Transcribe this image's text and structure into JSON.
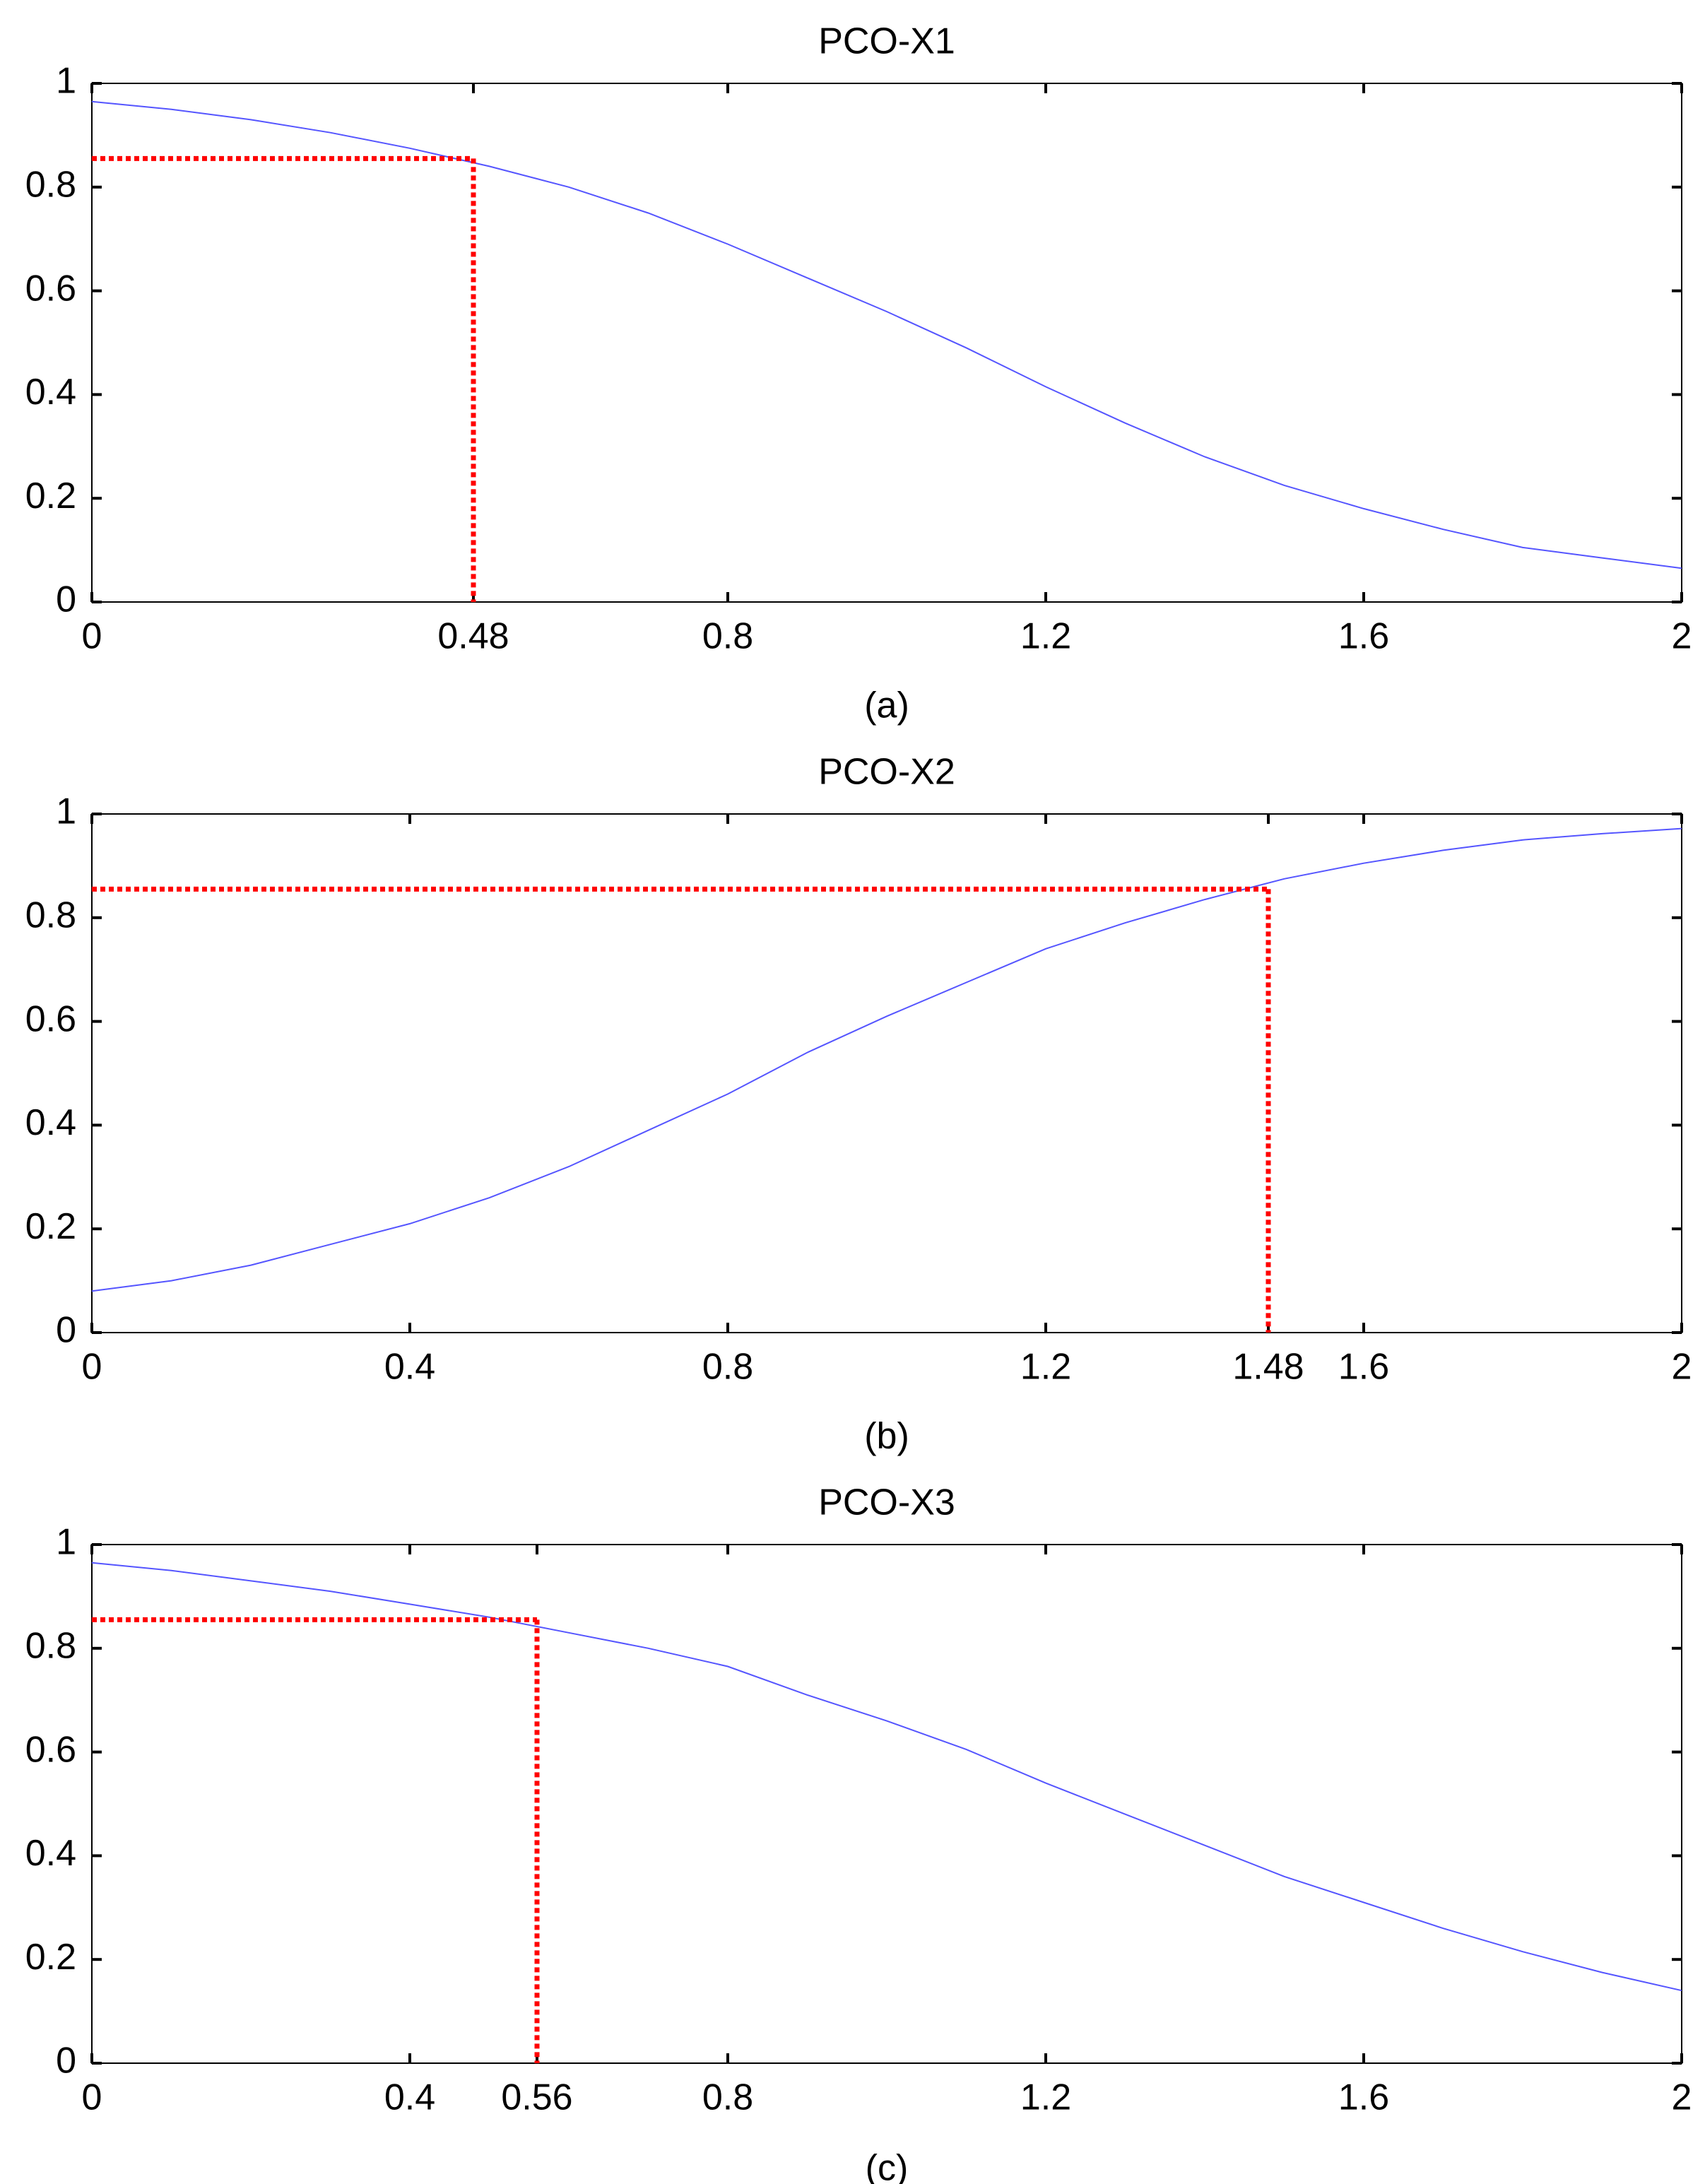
{
  "colors": {
    "series": "#5555ff",
    "guide": "#ff0000",
    "axes": "#000000",
    "background": "#ffffff"
  },
  "chart_data": [
    {
      "id": "a",
      "type": "line",
      "title": "PCO-X1",
      "subplot_label": "(a)",
      "xlim": [
        0,
        2
      ],
      "ylim": [
        0,
        1
      ],
      "xticks": [
        0,
        0.48,
        0.8,
        1.2,
        1.6,
        2
      ],
      "xtick_labels": [
        "0",
        "0.48",
        "0.8",
        "1.2",
        "1.6",
        "2"
      ],
      "yticks": [
        0,
        0.2,
        0.4,
        0.6,
        0.8,
        1
      ],
      "ytick_labels": [
        "0",
        "0.2",
        "0.4",
        "0.6",
        "0.8",
        "1"
      ],
      "series": [
        {
          "name": "PCO-X1",
          "x": [
            0,
            0.1,
            0.2,
            0.3,
            0.4,
            0.5,
            0.6,
            0.7,
            0.8,
            0.9,
            1.0,
            1.1,
            1.2,
            1.3,
            1.4,
            1.5,
            1.6,
            1.7,
            1.8,
            1.9,
            2.0
          ],
          "y": [
            0.965,
            0.95,
            0.93,
            0.905,
            0.875,
            0.84,
            0.8,
            0.75,
            0.69,
            0.625,
            0.56,
            0.49,
            0.415,
            0.345,
            0.28,
            0.225,
            0.18,
            0.14,
            0.105,
            0.085,
            0.065
          ]
        }
      ],
      "guide": {
        "x": 0.48,
        "y": 0.855
      }
    },
    {
      "id": "b",
      "type": "line",
      "title": "PCO-X2",
      "subplot_label": "(b)",
      "xlim": [
        0,
        2
      ],
      "ylim": [
        0,
        1
      ],
      "xticks": [
        0,
        0.4,
        0.8,
        1.2,
        1.48,
        1.6,
        2
      ],
      "xtick_labels": [
        "0",
        "0.4",
        "0.8",
        "1.2",
        "1.48",
        "1.6",
        "2"
      ],
      "yticks": [
        0,
        0.2,
        0.4,
        0.6,
        0.8,
        1
      ],
      "ytick_labels": [
        "0",
        "0.2",
        "0.4",
        "0.6",
        "0.8",
        "1"
      ],
      "series": [
        {
          "name": "PCO-X2",
          "x": [
            0,
            0.1,
            0.2,
            0.3,
            0.4,
            0.5,
            0.6,
            0.7,
            0.8,
            0.9,
            1.0,
            1.1,
            1.2,
            1.3,
            1.4,
            1.5,
            1.6,
            1.7,
            1.8,
            1.9,
            2.0
          ],
          "y": [
            0.08,
            0.1,
            0.13,
            0.17,
            0.21,
            0.26,
            0.32,
            0.39,
            0.46,
            0.54,
            0.61,
            0.675,
            0.74,
            0.79,
            0.835,
            0.875,
            0.905,
            0.93,
            0.95,
            0.962,
            0.972
          ]
        }
      ],
      "guide": {
        "x": 1.48,
        "y": 0.855
      }
    },
    {
      "id": "c",
      "type": "line",
      "title": "PCO-X3",
      "subplot_label": "(c)",
      "xlim": [
        0,
        2
      ],
      "ylim": [
        0,
        1
      ],
      "xticks": [
        0,
        0.4,
        0.56,
        0.8,
        1.2,
        1.6,
        2
      ],
      "xtick_labels": [
        "0",
        "0.4",
        "0.56",
        "0.8",
        "1.2",
        "1.6",
        "2"
      ],
      "yticks": [
        0,
        0.2,
        0.4,
        0.6,
        0.8,
        1
      ],
      "ytick_labels": [
        "0",
        "0.2",
        "0.4",
        "0.6",
        "0.8",
        "1"
      ],
      "series": [
        {
          "name": "PCO-X3",
          "x": [
            0,
            0.1,
            0.2,
            0.3,
            0.4,
            0.5,
            0.6,
            0.7,
            0.8,
            0.9,
            1.0,
            1.1,
            1.2,
            1.3,
            1.4,
            1.5,
            1.6,
            1.7,
            1.8,
            1.9,
            2.0
          ],
          "y": [
            0.965,
            0.95,
            0.93,
            0.91,
            0.885,
            0.86,
            0.83,
            0.8,
            0.765,
            0.71,
            0.66,
            0.605,
            0.54,
            0.48,
            0.42,
            0.36,
            0.31,
            0.26,
            0.215,
            0.175,
            0.14
          ]
        }
      ],
      "guide": {
        "x": 0.56,
        "y": 0.855
      }
    }
  ]
}
